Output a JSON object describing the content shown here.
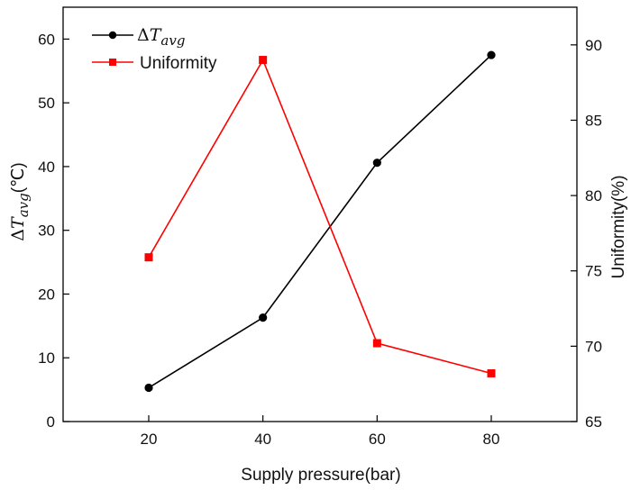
{
  "chart_data": {
    "type": "line",
    "x": [
      20,
      40,
      60,
      80
    ],
    "xlabel": "Supply pressure(bar)",
    "xlim": [
      5,
      95
    ],
    "xticks": [
      20,
      40,
      60,
      80
    ],
    "series": [
      {
        "name": "ΔT_avg",
        "legend_delta": "Δ",
        "legend_symbol": "T",
        "legend_subscript": "avg",
        "axis": "left",
        "color": "#000000",
        "marker": "circle",
        "values": [
          5.3,
          16.3,
          40.6,
          57.5
        ]
      },
      {
        "name": "Uniformity",
        "legend_label": "Uniformity",
        "axis": "right",
        "color": "#ff0000",
        "marker": "square",
        "values": [
          75.9,
          89.0,
          70.2,
          68.2
        ]
      }
    ],
    "ylabel_left": {
      "delta": "Δ",
      "symbol": "T",
      "subscript": "avg",
      "unit": "(℃)"
    },
    "ylim_left": [
      0,
      65
    ],
    "yticks_left": [
      0,
      10,
      20,
      30,
      40,
      50,
      60
    ],
    "ylabel_right": "Uniformity(%)",
    "ylim_right": [
      65,
      92.5
    ],
    "yticks_right": [
      65,
      70,
      75,
      80,
      85,
      90
    ],
    "legend_position": "top-left",
    "grid": false
  }
}
